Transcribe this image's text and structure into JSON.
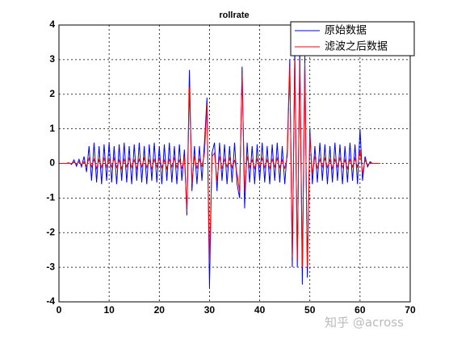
{
  "chart_data": {
    "type": "line",
    "title": "rollrate",
    "x": [
      0,
      0.5,
      1,
      1.5,
      2,
      2.5,
      3,
      3.5,
      4,
      4.5,
      5,
      5.5,
      6,
      6.5,
      7,
      7.5,
      8,
      8.5,
      9,
      9.5,
      10,
      10.5,
      11,
      11.5,
      12,
      12.5,
      13,
      13.5,
      14,
      14.5,
      15,
      15.5,
      16,
      16.5,
      17,
      17.5,
      18,
      18.5,
      19,
      19.5,
      20,
      20.5,
      21,
      21.5,
      22,
      22.5,
      23,
      23.5,
      24,
      24.5,
      25,
      25.5,
      26,
      26.5,
      27,
      27.5,
      28,
      28.5,
      29,
      29.5,
      30,
      30.5,
      31,
      31.5,
      32,
      32.5,
      33,
      33.5,
      34,
      34.5,
      35,
      35.5,
      36,
      36.5,
      37,
      37.5,
      38,
      38.5,
      39,
      39.5,
      40,
      40.5,
      41,
      41.5,
      42,
      42.5,
      43,
      43.5,
      44,
      44.5,
      45,
      45.5,
      46,
      46.5,
      47,
      47.5,
      48,
      48.5,
      49,
      49.5,
      50,
      50.5,
      51,
      51.5,
      52,
      52.5,
      53,
      53.5,
      54,
      54.5,
      55,
      55.5,
      56,
      56.5,
      57,
      57.5,
      58,
      58.5,
      59,
      59.5,
      60,
      60.5,
      61,
      61.5,
      62,
      62.5,
      63,
      63.5,
      64
    ],
    "series": [
      {
        "name": "原始数据",
        "color": "#0000ff",
        "values": [
          0,
          0,
          0,
          0,
          0.02,
          -0.03,
          0.1,
          -0.08,
          0.12,
          -0.1,
          0.2,
          -0.25,
          0.5,
          -0.5,
          0.6,
          -0.55,
          0.5,
          -0.6,
          0.55,
          -0.5,
          0.6,
          -0.55,
          0.5,
          -0.6,
          0.55,
          -0.5,
          0.6,
          -0.55,
          0.5,
          -0.6,
          0.55,
          -0.5,
          0.6,
          -0.55,
          0.5,
          -0.6,
          0.55,
          -0.5,
          0.6,
          -0.55,
          0.5,
          -0.6,
          0.55,
          -0.5,
          0.6,
          -0.55,
          0.5,
          -0.6,
          0.55,
          -0.5,
          0.4,
          -1.5,
          2.7,
          -0.8,
          0.5,
          -0.6,
          0.5,
          -0.5,
          0.6,
          1.9,
          -3.6,
          0.3,
          0.6,
          -0.8,
          0.6,
          -0.5,
          0.55,
          -0.6,
          0.5,
          -0.55,
          0.6,
          -0.6,
          -1.0,
          2.8,
          -1.3,
          0.6,
          -0.55,
          0.5,
          -0.6,
          0.55,
          -0.5,
          0.6,
          -0.55,
          0.5,
          -0.6,
          0.55,
          -0.5,
          0.6,
          -0.55,
          0.5,
          -0.6,
          0.4,
          3.0,
          -3.0,
          3.3,
          -3.0,
          3.3,
          -3.5,
          3.1,
          -3.3,
          1.0,
          -0.6,
          0.5,
          -0.55,
          0.6,
          -0.5,
          0.55,
          -0.6,
          0.5,
          -0.55,
          0.6,
          -0.5,
          0.55,
          -0.6,
          0.5,
          -0.55,
          0.6,
          -0.5,
          0.55,
          -0.6,
          1.0,
          -0.5,
          0.2,
          -0.1,
          0.05,
          0,
          0,
          0,
          0
        ]
      },
      {
        "name": "滤波之后数据",
        "color": "#ff0000",
        "values": [
          0,
          0,
          0,
          0,
          0.01,
          -0.01,
          0.03,
          -0.02,
          0.04,
          -0.03,
          0.05,
          -0.08,
          0.15,
          -0.1,
          0.12,
          -0.15,
          0.1,
          -0.12,
          0.15,
          -0.1,
          0.12,
          -0.1,
          0.15,
          -0.12,
          0.1,
          -0.15,
          0.12,
          -0.1,
          0.15,
          -0.12,
          0.1,
          -0.15,
          0.12,
          -0.1,
          0.15,
          -0.12,
          0.1,
          -0.15,
          0.12,
          -0.1,
          0.15,
          -0.12,
          0.1,
          -0.15,
          0.12,
          -0.1,
          0.15,
          -0.12,
          0.1,
          -0.15,
          0.2,
          -1.4,
          2.2,
          -0.6,
          0.2,
          -0.15,
          0.12,
          -0.1,
          0.3,
          1.7,
          -2.9,
          0.2,
          0.3,
          -0.5,
          0.2,
          -0.15,
          0.12,
          -0.1,
          0.15,
          -0.12,
          0.1,
          -0.3,
          -0.8,
          2.6,
          -0.8,
          0.2,
          -0.12,
          0.1,
          -0.15,
          0.12,
          -0.1,
          0.15,
          -0.12,
          0.1,
          -0.15,
          0.12,
          -0.1,
          0.15,
          -0.12,
          0.1,
          -0.15,
          0.2,
          2.8,
          -2.7,
          3.0,
          -2.8,
          3.0,
          -3.0,
          2.9,
          -3.0,
          0.8,
          -0.3,
          0.2,
          -0.15,
          0.12,
          -0.1,
          0.15,
          -0.12,
          0.1,
          -0.15,
          0.12,
          -0.1,
          0.15,
          -0.12,
          0.1,
          -0.15,
          0.12,
          -0.1,
          0.15,
          -0.12,
          0.4,
          -0.3,
          0.1,
          -0.05,
          0.02,
          0,
          0,
          0,
          0
        ]
      }
    ],
    "xlim": [
      0,
      70
    ],
    "xticks": [
      0,
      10,
      20,
      30,
      40,
      50,
      60,
      70
    ],
    "ylim": [
      -4,
      4
    ],
    "yticks": [
      -4,
      -3,
      -2,
      -1,
      0,
      1,
      2,
      3,
      4
    ],
    "grid": true,
    "legend": "northeast"
  },
  "watermark": "知乎 @across"
}
